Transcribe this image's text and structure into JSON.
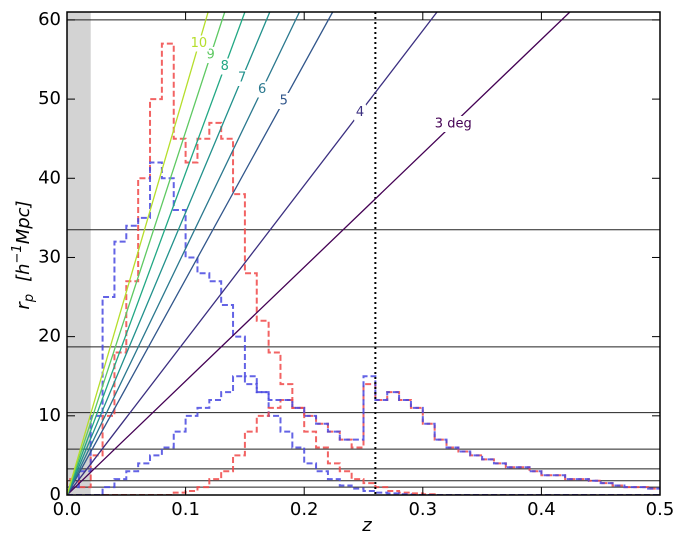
{
  "chart_data": {
    "type": "histogram",
    "x_label": "z",
    "y_label": {
      "main": "r",
      "sub": "p",
      "rest": "[h",
      "sup": "−1",
      "end": "Mpc]"
    },
    "xlim": [
      0,
      0.5
    ],
    "ylim": [
      0,
      61
    ],
    "xticks": [
      {
        "value": 0,
        "label": "0.0"
      },
      0.1,
      0.2,
      0.3,
      0.4,
      0.5
    ],
    "yticks": [
      0,
      10,
      20,
      30,
      40,
      50,
      60
    ],
    "shade": [
      0,
      0.02
    ],
    "shade_color": "#d3d3d3",
    "vline": 0.26,
    "hlines": [
      60,
      33.5,
      18.7,
      10.4,
      5.8,
      3.3,
      1.8,
      1.0
    ],
    "bins": [
      0,
      0.01,
      0.02,
      0.03,
      0.04,
      0.05,
      0.06,
      0.07,
      0.08,
      0.09,
      0.1,
      0.11,
      0.12,
      0.13,
      0.14,
      0.15,
      0.16,
      0.17,
      0.18,
      0.19,
      0.2,
      0.21,
      0.22,
      0.23,
      0.24,
      0.25,
      0.26,
      0.27,
      0.28,
      0.29,
      0.3,
      0.31,
      0.32,
      0.33,
      0.34,
      0.35,
      0.36,
      0.37,
      0.38,
      0.39,
      0.4,
      0.41,
      0.42,
      0.43,
      0.44,
      0.45,
      0.46,
      0.47,
      0.48,
      0.49,
      0.5
    ],
    "series": [
      {
        "color": "#f04848",
        "values": [
          2,
          1,
          5,
          10,
          18,
          27,
          40,
          50,
          57,
          45,
          42,
          45,
          47,
          45,
          38,
          28,
          22,
          18,
          14,
          11,
          8,
          6,
          4,
          3,
          2,
          1.5,
          1,
          0.5,
          0.3,
          0.2,
          0.1,
          0,
          0,
          0,
          0,
          0,
          0,
          0,
          0,
          0,
          0,
          0,
          0,
          0,
          0,
          0,
          0,
          0,
          0,
          0
        ]
      },
      {
        "color": "#4848e0",
        "values": [
          1,
          3,
          10,
          25,
          32,
          34,
          35,
          42,
          40,
          36,
          30,
          28,
          27,
          24,
          20,
          15,
          13,
          10,
          8,
          6,
          4,
          3,
          2,
          1.2,
          0.8,
          0.5,
          0.3,
          0.2,
          0.1,
          0,
          0,
          0,
          0,
          0,
          0,
          0,
          0,
          0,
          0,
          0,
          0,
          0,
          0,
          0,
          0,
          0,
          0,
          0,
          0,
          0
        ]
      },
      {
        "color": "#f04848",
        "values": [
          0,
          0,
          0,
          0,
          0,
          0,
          0,
          0,
          0,
          0.3,
          0.5,
          1,
          2,
          3,
          5,
          8,
          10,
          11,
          12,
          11,
          10,
          9,
          8,
          7,
          6,
          14,
          12,
          13,
          12,
          11,
          9,
          7,
          6,
          5.5,
          5,
          4.5,
          4,
          3.5,
          3.5,
          3,
          2.5,
          2.5,
          2,
          2,
          1.8,
          1.5,
          1.2,
          1,
          1,
          0.8
        ]
      },
      {
        "color": "#4848e0",
        "values": [
          0,
          0,
          0,
          1,
          2,
          3,
          4,
          5,
          6,
          8,
          10,
          11,
          12,
          13,
          15,
          14,
          13,
          12,
          12,
          11,
          10,
          9,
          8,
          7,
          7,
          15,
          12,
          13,
          12,
          11,
          9,
          7,
          6,
          5.5,
          5,
          4.5,
          4,
          3.5,
          3.5,
          3,
          2.5,
          2.5,
          2,
          2,
          1.8,
          1.5,
          1.2,
          1,
          1,
          0.8
        ]
      }
    ],
    "angle_lines": [
      {
        "name": "3 deg",
        "color": "#440154",
        "x": [
          0,
          0.424
        ],
        "values": [
          0,
          61
        ]
      },
      {
        "name": "4",
        "color": "#3b2f80",
        "x": [
          0,
          0.312
        ],
        "values": [
          0,
          61
        ]
      },
      {
        "name": "5",
        "color": "#31568b",
        "x": [
          0,
          0.224
        ],
        "values": [
          0,
          61
        ]
      },
      {
        "name": "6",
        "color": "#2a788e",
        "x": [
          0,
          0.196
        ],
        "values": [
          0,
          61
        ]
      },
      {
        "name": "7",
        "color": "#21918c",
        "x": [
          0,
          0.171
        ],
        "values": [
          0,
          61
        ]
      },
      {
        "name": "8",
        "color": "#22a884",
        "x": [
          0,
          0.15
        ],
        "values": [
          0,
          61
        ]
      },
      {
        "name": "9",
        "color": "#5ec962",
        "x": [
          0,
          0.133
        ],
        "values": [
          0,
          61
        ]
      },
      {
        "name": "10",
        "color": "#b5de2b",
        "x": [
          0,
          0.119
        ],
        "values": [
          0,
          61
        ]
      }
    ]
  }
}
